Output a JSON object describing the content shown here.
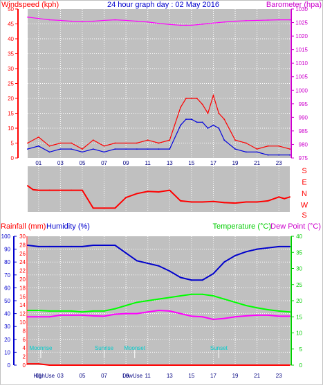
{
  "title": "24 hour graph day : 02 May 2016",
  "top_chart": {
    "left_label": "Windspeed (kph)",
    "right_label": "Barometer (hpa)",
    "left_ticks": [
      "50",
      "45",
      "40",
      "35",
      "30",
      "25",
      "20",
      "15",
      "10",
      "5",
      "0"
    ],
    "right_ticks": [
      "1030",
      "1025",
      "1020",
      "1015",
      "1010",
      "1005",
      "1000",
      "995",
      "990",
      "985",
      "980",
      "975"
    ],
    "x_ticks": [
      "01",
      "03",
      "05",
      "07",
      "09",
      "11",
      "13",
      "15",
      "17",
      "19",
      "21",
      "23"
    ]
  },
  "direction_chart": {
    "labels": [
      "S",
      "E",
      "N",
      "W",
      "S"
    ]
  },
  "bottom_chart": {
    "rain_label": "Rainfall (mm)",
    "humidity_label": "Humidity (%)",
    "temp_label": "Temperature (°C)",
    "dew_label": "Dew Point (°C)",
    "humidity_ticks": [
      "100",
      "90",
      "80",
      "70",
      "60",
      "50",
      "40",
      "30",
      "20",
      "10",
      "0"
    ],
    "rain_ticks": [
      "30",
      "28",
      "26",
      "24",
      "22",
      "20",
      "18",
      "16",
      "14",
      "12",
      "10",
      "8",
      "6",
      "4",
      "2",
      "0"
    ],
    "temp_ticks": [
      "40",
      "35",
      "30",
      "25",
      "20",
      "15",
      "10",
      "5",
      "0"
    ],
    "x_ticks": [
      "01",
      "03",
      "05",
      "07",
      "09",
      "11",
      "13",
      "15",
      "17",
      "19",
      "21",
      "23"
    ],
    "markers": [
      {
        "label": "Sunrise",
        "hour": 7.0,
        "color": "#00cccc"
      },
      {
        "label": "Sunset",
        "hour": 17.5,
        "color": "#00cccc"
      },
      {
        "label": "Moonrise",
        "hour": 1.2,
        "color": "#00cccc"
      },
      {
        "label": "Moonset",
        "hour": 9.8,
        "color": "#00cccc"
      }
    ],
    "bottom_text": [
      {
        "label": "HighUse",
        "hour": 1.5
      },
      {
        "label": "LowUse",
        "hour": 9.6
      }
    ]
  },
  "colors": {
    "plot_bg": "#c0c0c0",
    "gust": "#ff0000",
    "wind": "#0000dd",
    "barometer": "#ff00ff",
    "humidity": "#0000cc",
    "temperature": "#00ff00",
    "dewpoint": "#ff00ff",
    "rain": "#ff0000",
    "direction": "#ff0000",
    "left_axis": "#ff0000",
    "right_axis_baro": "#cc00cc",
    "right_axis_temp": "#00cc00",
    "humidity_axis": "#0000cc"
  },
  "chart_data": [
    {
      "type": "line",
      "title": "24 hour graph day : 02 May 2016",
      "xlabel": "",
      "ylabel": "Windspeed (kph)",
      "y2label": "Barometer (hpa)",
      "ylim": [
        0,
        50
      ],
      "y2lim": [
        975,
        1030
      ],
      "x": [
        0,
        1,
        2,
        3,
        4,
        5,
        6,
        7,
        8,
        9,
        10,
        11,
        12,
        13,
        14,
        14.5,
        15,
        15.5,
        16,
        16.5,
        17,
        17.5,
        18,
        19,
        20,
        21,
        22,
        23,
        24
      ],
      "series": [
        {
          "name": "Gust",
          "axis": "left",
          "values": [
            5,
            7,
            4,
            5,
            5,
            3,
            6,
            4,
            5,
            5,
            5,
            6,
            5,
            6,
            17,
            20,
            20,
            20,
            18,
            15,
            21,
            15,
            13,
            6,
            5,
            3,
            4,
            4,
            3
          ]
        },
        {
          "name": "Wind",
          "axis": "left",
          "values": [
            3,
            4,
            2,
            3,
            3,
            2,
            3,
            2,
            3,
            3,
            3,
            3,
            3,
            3,
            11,
            13,
            13,
            12,
            12,
            10,
            11,
            10,
            6,
            3,
            2,
            2,
            1,
            1,
            1
          ]
        },
        {
          "name": "Barometer",
          "axis": "right",
          "values": [
            1027,
            1026.5,
            1026,
            1025.8,
            1025.5,
            1025.3,
            1025.5,
            1025.8,
            1026,
            1025.8,
            1025.5,
            1025.2,
            1024.7,
            1024.3,
            1024,
            1024,
            1024,
            1024.2,
            1024.4,
            1024.6,
            1024.8,
            1025,
            1025.2,
            1025.5,
            1025.7,
            1025.8,
            1025.9,
            1026,
            1026
          ]
        }
      ]
    },
    {
      "type": "line",
      "title": "",
      "ylabel": "Wind direction",
      "x": [
        0,
        0.5,
        1,
        2,
        3,
        4,
        5,
        6,
        7,
        8,
        9,
        10,
        11,
        12,
        13,
        14,
        15,
        16,
        17,
        18,
        19,
        20,
        21,
        22,
        23,
        23.5,
        24
      ],
      "series": [
        {
          "name": "Direction",
          "values": [
            30,
            355,
            350,
            350,
            350,
            350,
            350,
            190,
            190,
            190,
            285,
            320,
            340,
            335,
            350,
            255,
            245,
            245,
            250,
            240,
            235,
            245,
            245,
            255,
            290,
            275,
            290
          ]
        }
      ],
      "y_labels": [
        "S",
        "E",
        "N",
        "W",
        "S"
      ]
    },
    {
      "type": "line",
      "title": "",
      "ylabel": "Humidity (%)",
      "y2label": "Temperature (°C)",
      "ylim": [
        0,
        100
      ],
      "y2lim": [
        0,
        40
      ],
      "x": [
        0,
        1,
        2,
        3,
        4,
        5,
        6,
        7,
        8,
        9,
        10,
        11,
        12,
        13,
        14,
        15,
        16,
        17,
        18,
        19,
        20,
        21,
        22,
        23,
        24
      ],
      "series": [
        {
          "name": "Humidity",
          "axis": "left",
          "values": [
            93,
            92,
            92,
            92,
            92,
            92,
            93,
            93,
            93,
            87,
            81,
            79,
            77,
            73,
            68,
            66,
            66,
            71,
            80,
            85,
            88,
            90,
            91,
            92,
            92
          ]
        },
        {
          "name": "Temperature",
          "axis": "right",
          "values": [
            17,
            17,
            16.8,
            16.8,
            16.8,
            16.5,
            16.8,
            16.8,
            17.5,
            18.5,
            19.5,
            20,
            20.5,
            21,
            21.5,
            22,
            22,
            21.5,
            20.5,
            19.5,
            18.5,
            17.8,
            17.2,
            16.8,
            16.5
          ]
        },
        {
          "name": "Dew Point",
          "axis": "right",
          "values": [
            15,
            15,
            15,
            15.5,
            15.5,
            15.5,
            15.3,
            15.2,
            15.8,
            16,
            16,
            16.5,
            17,
            16.8,
            16,
            15.2,
            15,
            14.2,
            14.5,
            15,
            15.3,
            15.5,
            15.5,
            15.2,
            15.2
          ]
        },
        {
          "name": "Rainfall",
          "axis": "left",
          "values": [
            0.3,
            0.3,
            0,
            0,
            0,
            0,
            0,
            0,
            0,
            0,
            0,
            0,
            0,
            0,
            0,
            0,
            0,
            0,
            0,
            0,
            0,
            0,
            0,
            0,
            0
          ]
        }
      ]
    }
  ]
}
